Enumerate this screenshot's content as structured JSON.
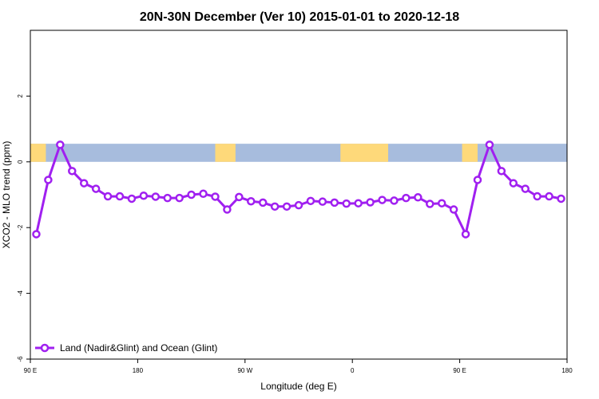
{
  "chart_data": {
    "type": "line",
    "title": "20N-30N December (Ver 10)   2015-01-01 to 2020-12-18",
    "xlabel": "Longitude (deg E)",
    "ylabel": "XCO2 - MLO trend (ppm)",
    "xlim": [
      90,
      540
    ],
    "ylim": [
      -6,
      4
    ],
    "x_ticks": [
      {
        "value": 90,
        "label": "90 E"
      },
      {
        "value": 180,
        "label": "180"
      },
      {
        "value": 270,
        "label": "90 W"
      },
      {
        "value": 360,
        "label": "0"
      },
      {
        "value": 450,
        "label": "90 E"
      },
      {
        "value": 540,
        "label": "180"
      }
    ],
    "y_ticks": [
      {
        "value": -6,
        "label": "-6"
      },
      {
        "value": -4,
        "label": "-4"
      },
      {
        "value": -2,
        "label": "-2"
      },
      {
        "value": 0,
        "label": "0"
      },
      {
        "value": 2,
        "label": "2"
      }
    ],
    "grid": false,
    "legend_position": "bottom-left",
    "map_strip": {
      "y_range": [
        0,
        0.55
      ],
      "ocean_color": "#a7bcdd",
      "land_color": "#fed97a",
      "land_segments_x": [
        [
          90,
          103
        ],
        [
          245,
          262
        ],
        [
          350,
          390
        ],
        [
          452,
          465
        ]
      ]
    },
    "series": [
      {
        "name": "Land (Nadir&Glint) and Ocean (Glint)",
        "color": "#a020f0",
        "x": [
          95,
          105,
          115,
          125,
          135,
          145,
          155,
          165,
          175,
          185,
          195,
          205,
          215,
          225,
          235,
          245,
          255,
          265,
          275,
          285,
          295,
          305,
          315,
          325,
          335,
          345,
          355,
          365,
          375,
          385,
          395,
          405,
          415,
          425,
          435,
          445,
          455,
          465,
          475,
          485,
          495,
          505,
          515,
          525,
          535
        ],
        "y": [
          -2.2,
          -0.55,
          0.52,
          -0.28,
          -0.65,
          -0.82,
          -1.05,
          -1.05,
          -1.12,
          -1.03,
          -1.06,
          -1.1,
          -1.1,
          -1.0,
          -0.97,
          -1.06,
          -1.45,
          -1.07,
          -1.2,
          -1.24,
          -1.36,
          -1.36,
          -1.32,
          -1.19,
          -1.21,
          -1.24,
          -1.27,
          -1.26,
          -1.23,
          -1.16,
          -1.18,
          -1.1,
          -1.08,
          -1.28,
          -1.26,
          -1.45,
          -2.2,
          -0.55,
          0.52,
          -0.28,
          -0.65,
          -0.82,
          -1.05,
          -1.05,
          -1.12
        ]
      }
    ]
  }
}
